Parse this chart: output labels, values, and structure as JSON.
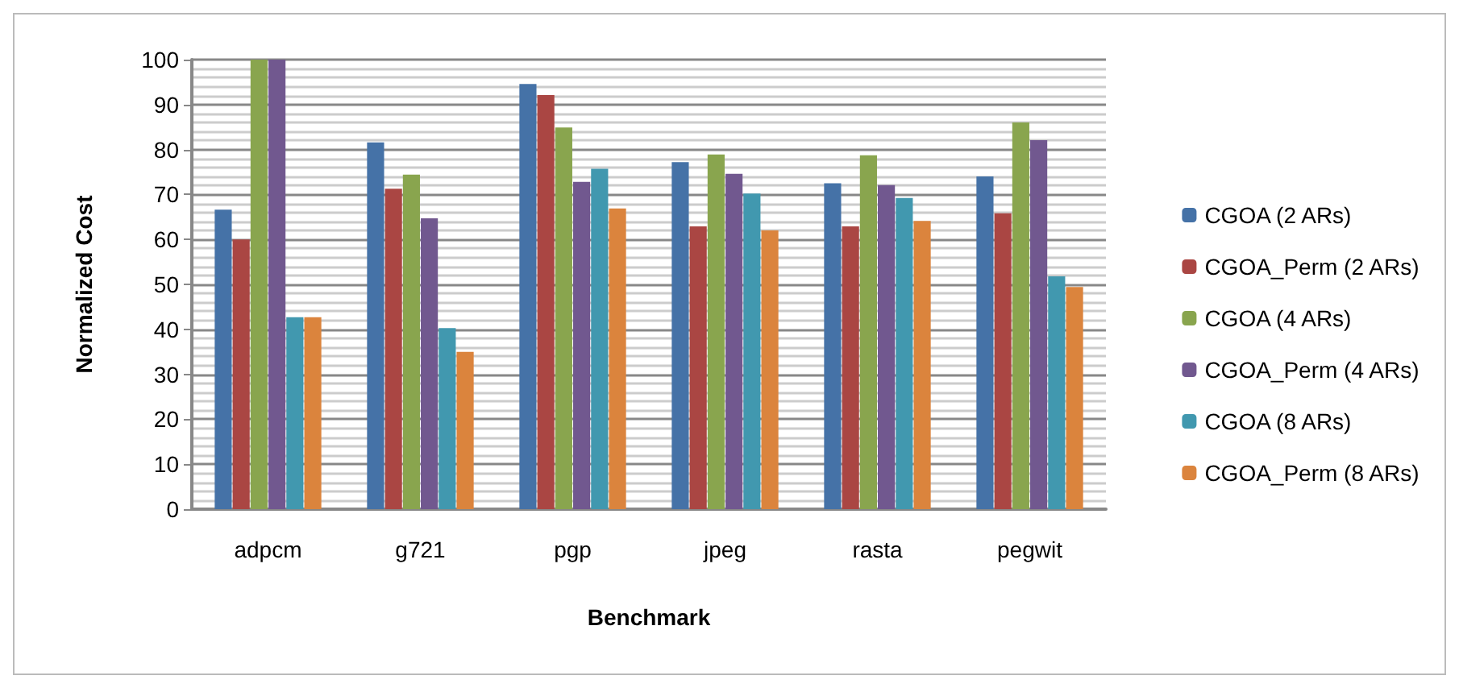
{
  "chart_data": {
    "type": "bar",
    "xlabel": "Benchmark",
    "ylabel": "Normalized Cost",
    "categories": [
      "adpcm",
      "g721",
      "pgp",
      "jpeg",
      "rasta",
      "pegwit"
    ],
    "series": [
      {
        "name": "CGOA (2 ARs)",
        "color": "#4572a7",
        "values": [
          66.6,
          81.6,
          94.6,
          77.2,
          72.5,
          74.0
        ]
      },
      {
        "name": "CGOA_Perm (2 ARs)",
        "color": "#aa4643",
        "values": [
          60.0,
          71.3,
          92.1,
          62.9,
          62.9,
          65.8
        ]
      },
      {
        "name": "CGOA (4 ARs)",
        "color": "#89a54e",
        "values": [
          100,
          74.4,
          84.9,
          78.9,
          78.7,
          86.0
        ]
      },
      {
        "name": "CGOA_Perm (4 ARs)",
        "color": "#71588f",
        "values": [
          100,
          64.7,
          72.8,
          74.6,
          72.1,
          82.1
        ]
      },
      {
        "name": "CGOA (8 ARs)",
        "color": "#4198af",
        "values": [
          42.7,
          40.3,
          75.7,
          70.2,
          69.2,
          51.8
        ]
      },
      {
        "name": "CGOA_Perm (8 ARs)",
        "color": "#db843d",
        "values": [
          42.7,
          35.0,
          66.9,
          62.0,
          64.1,
          49.4
        ]
      }
    ],
    "ylim": [
      0,
      100
    ],
    "yticks": [
      0,
      10,
      20,
      30,
      40,
      50,
      60,
      70,
      80,
      90,
      100
    ],
    "grid": "y",
    "legend": "right"
  }
}
